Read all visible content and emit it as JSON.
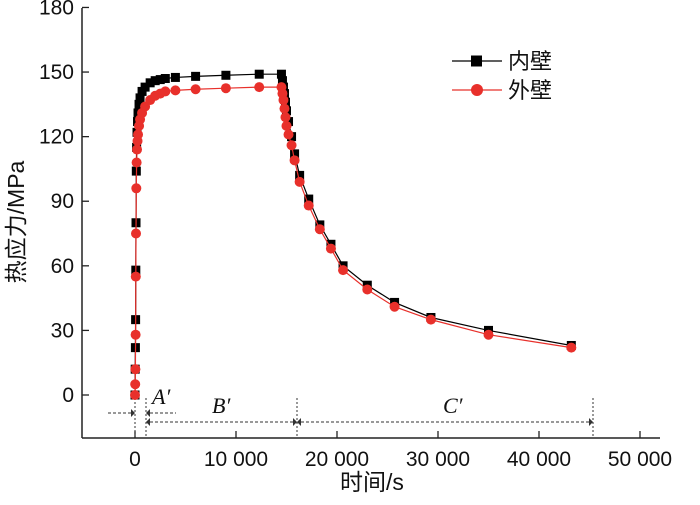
{
  "chart_data": {
    "type": "line",
    "title": "",
    "xlabel": "时间/s",
    "ylabel": "热应力/MPa",
    "xlim": [
      -5000,
      50000
    ],
    "ylim": [
      -20,
      180
    ],
    "x_ticks": [
      0,
      10000,
      20000,
      30000,
      40000,
      50000
    ],
    "x_tick_labels": [
      "0",
      "10 000",
      "20 000",
      "30 000",
      "40 000",
      "50 000"
    ],
    "y_ticks": [
      0,
      30,
      60,
      90,
      120,
      150,
      180
    ],
    "y_tick_labels": [
      "0",
      "30",
      "60",
      "90",
      "120",
      "150",
      "180"
    ],
    "grid": false,
    "legend_position": "top-right",
    "series": [
      {
        "name": "内壁",
        "color": "#000000",
        "marker": "square",
        "x": [
          0,
          20,
          40,
          60,
          80,
          100,
          130,
          160,
          200,
          250,
          300,
          400,
          500,
          700,
          1000,
          1500,
          2000,
          2500,
          3000,
          4000,
          6000,
          9000,
          12300,
          14500,
          14600,
          14700,
          14800,
          14900,
          15000,
          15200,
          15500,
          15800,
          16300,
          17200,
          18300,
          19400,
          20600,
          23000,
          25700,
          29300,
          35000,
          43200
        ],
        "y": [
          0,
          12,
          22,
          35,
          58,
          80,
          104,
          115,
          122,
          127,
          131,
          135,
          138,
          141,
          143,
          145,
          146,
          146.5,
          147,
          147.5,
          148,
          148.5,
          149,
          149,
          146,
          143,
          140,
          136,
          132,
          127,
          120,
          112,
          102,
          91,
          79,
          70,
          60,
          51,
          43,
          36,
          30,
          23
        ]
      },
      {
        "name": "外壁",
        "color": "#e8302b",
        "marker": "circle",
        "x": [
          0,
          20,
          40,
          60,
          80,
          100,
          130,
          160,
          200,
          250,
          300,
          400,
          500,
          700,
          1000,
          1500,
          2000,
          2500,
          3000,
          4000,
          6000,
          9000,
          12300,
          14500,
          14600,
          14700,
          14800,
          14900,
          15000,
          15200,
          15500,
          15800,
          16300,
          17200,
          18300,
          19400,
          20600,
          23000,
          25700,
          29300,
          35000,
          43200
        ],
        "y": [
          0,
          5,
          12,
          28,
          55,
          75,
          96,
          108,
          114,
          118,
          121,
          125,
          128,
          131,
          134,
          137,
          139,
          140,
          141,
          141.5,
          142,
          142.5,
          143,
          143,
          140,
          137,
          133,
          129,
          125,
          121,
          116,
          109,
          99,
          88,
          77,
          68,
          58,
          49,
          41,
          35,
          28,
          22
        ]
      }
    ],
    "annotations": {
      "phases": [
        {
          "label": "A′",
          "x_start": 1000,
          "x_end": 1000
        },
        {
          "label": "B′",
          "x_start": 1000,
          "x_end": 15200
        },
        {
          "label": "C′",
          "x_start": 15200,
          "x_end": 43500
        }
      ]
    }
  }
}
